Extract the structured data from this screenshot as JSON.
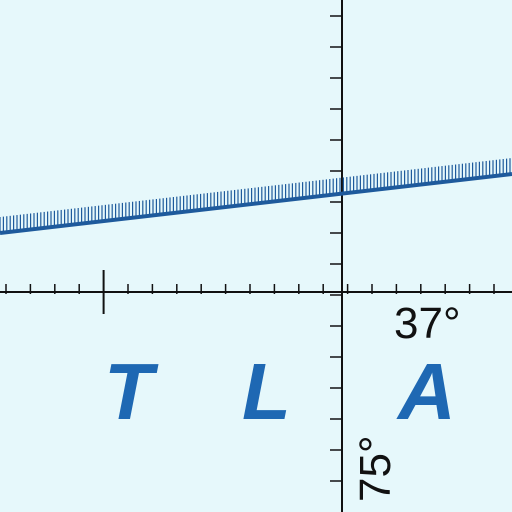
{
  "map": {
    "background_color": "#e6f8fb",
    "grid_color": "#111111",
    "boundary_color": "#1e5a9c",
    "label_color": "#1e68b3",
    "graticule": {
      "latitude_label": "37°",
      "longitude_label": "75°"
    },
    "region_label_letters": [
      "T",
      "L",
      "A"
    ],
    "boundary_line": {
      "style": "hatched",
      "name": ""
    }
  }
}
